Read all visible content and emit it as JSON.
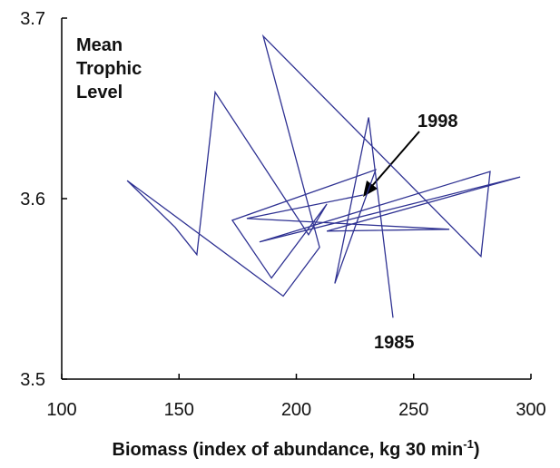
{
  "chart_data": {
    "type": "line",
    "y_label": [
      "Mean",
      "Trophic",
      "Level"
    ],
    "x_label": "Biomass (index of abundance, kg 30 min",
    "x_label_sup": "-1",
    "x_label_end": ")",
    "annotations": [
      "1998",
      "1985"
    ],
    "color": "#2e3192",
    "x": [
      241.2,
      230.8,
      216.4,
      233.8,
      172.7,
      189.4,
      213.0,
      205.2,
      165.4,
      157.6,
      148.4,
      127.9,
      194.4,
      209.9,
      185.9,
      278.7,
      282.6,
      184.3,
      295.4,
      213.0,
      265.2,
      178.9,
      228.4
    ],
    "values": [
      3.534,
      3.645,
      3.553,
      3.616,
      3.588,
      3.556,
      3.597,
      3.58,
      3.659,
      3.569,
      3.584,
      3.61,
      3.546,
      3.573,
      3.69,
      3.568,
      3.615,
      3.576,
      3.612,
      3.582,
      3.583,
      3.589,
      3.602
    ],
    "xlim": [
      100,
      300
    ],
    "xticks": [
      100,
      150,
      200,
      250,
      300
    ],
    "ylim": [
      3.5,
      3.7
    ],
    "yticks": [
      3.5,
      3.6,
      3.7
    ]
  }
}
